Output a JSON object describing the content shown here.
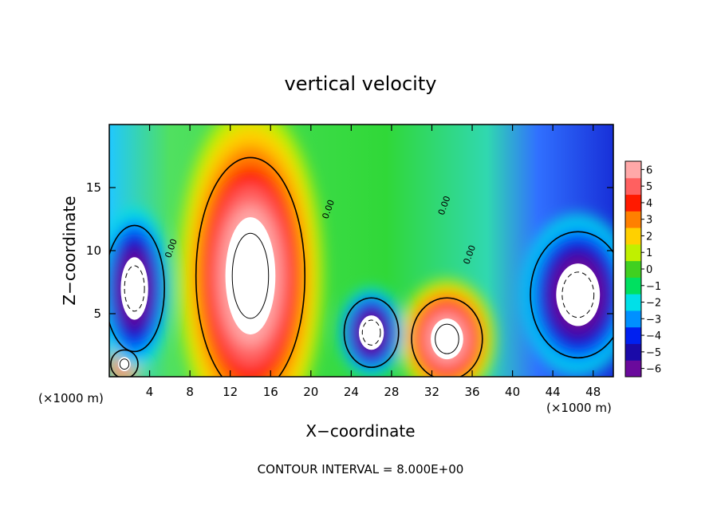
{
  "chart_data": {
    "type": "heatmap",
    "title": "vertical velocity",
    "xlabel": "X−coordinate",
    "ylabel": "Z−coordinate",
    "x_unit_left": "(×1000 m)",
    "x_unit_right": "(×1000 m)",
    "xlim": [
      0,
      50
    ],
    "ylim": [
      0,
      20
    ],
    "x_ticks": [
      4,
      8,
      12,
      16,
      20,
      24,
      28,
      32,
      36,
      40,
      44,
      48
    ],
    "y_ticks": [
      5,
      10,
      15
    ],
    "colorbar": {
      "ticks": [
        "6",
        "5",
        "4",
        "3",
        "2",
        "1",
        "0",
        "−1",
        "−2",
        "−3",
        "−4",
        "−5",
        "−6"
      ],
      "range": [
        -6,
        6
      ],
      "colors": [
        "#6a0a9c",
        "#1a0aa8",
        "#0020f0",
        "#0090ff",
        "#00e0e8",
        "#00e060",
        "#40d020",
        "#c0f000",
        "#ffd000",
        "#ff8000",
        "#ff1a00",
        "#ff6060",
        "#ffa8a8"
      ]
    },
    "contour_label": "0.00",
    "annotation": "CONTOUR INTERVAL = 8.000E+00",
    "features": [
      {
        "kind": "updraft",
        "x": 14,
        "z": 8,
        "rx": 4,
        "rz": 7.5,
        "peak": 7
      },
      {
        "kind": "updraft",
        "x": 33.5,
        "z": 3,
        "rx": 2.6,
        "rz": 2.6,
        "peak": 7
      },
      {
        "kind": "updraft",
        "x": 1.5,
        "z": 1,
        "rx": 1,
        "rz": 0.9,
        "peak": 6
      },
      {
        "kind": "downdraft",
        "x": 2.5,
        "z": 7,
        "rx": 2.2,
        "rz": 4,
        "peak": -7
      },
      {
        "kind": "downdraft",
        "x": 26,
        "z": 3.5,
        "rx": 2,
        "rz": 2.2,
        "peak": -7
      },
      {
        "kind": "downdraft",
        "x": 46.5,
        "z": 6.5,
        "rx": 3.5,
        "rz": 4,
        "peak": -7
      }
    ]
  }
}
